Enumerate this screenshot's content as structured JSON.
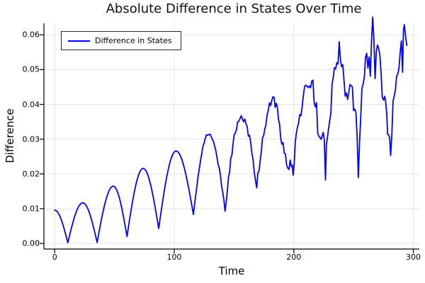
{
  "figure": {
    "title": "Absolute Difference in States Over Time"
  },
  "colors": {
    "line": "#0000ff",
    "grid": "#e3e3e3",
    "axis": "#000000",
    "text": "#000000",
    "legend_border": "#2b2b2b",
    "background": "#ffffff"
  },
  "chart_data": {
    "type": "line",
    "title": "Absolute Difference in States Over Time",
    "xlabel": "Time",
    "ylabel": "Difference",
    "xlim": [
      -9,
      305
    ],
    "ylim": [
      -0.0016,
      0.0633
    ],
    "grid": true,
    "legend": {
      "position": "top-left",
      "entries": [
        {
          "label": "Difference in States",
          "color": "#0000ff"
        }
      ]
    },
    "x_ticks": {
      "values": [
        0,
        100,
        200,
        300
      ],
      "labels": [
        "0",
        "100",
        "200",
        "300"
      ]
    },
    "y_ticks": {
      "values": [
        0,
        0.01,
        0.02,
        0.03,
        0.04,
        0.05,
        0.06
      ],
      "labels": [
        "0.00",
        "0.01",
        "0.02",
        "0.03",
        "0.04",
        "0.05",
        "0.06"
      ]
    },
    "series": [
      {
        "name": "Difference in States",
        "color": "#0000ff",
        "keypoints": [
          [
            0,
            0.0096
          ],
          [
            11,
            0.0002
          ],
          [
            23.5,
            0.0117
          ],
          [
            35.5,
            0.0003
          ],
          [
            49,
            0.0165
          ],
          [
            60.5,
            0.002
          ],
          [
            74,
            0.0216
          ],
          [
            87,
            0.0043
          ],
          [
            101.5,
            0.0266
          ],
          [
            116,
            0.0084
          ],
          [
            129,
            0.0317
          ],
          [
            142.5,
            0.0096
          ],
          [
            156,
            0.0364
          ],
          [
            169,
            0.017
          ],
          [
            183.5,
            0.0411
          ],
          [
            190,
            0.029
          ],
          [
            193,
            0.024
          ],
          [
            196,
            0.0205
          ],
          [
            198,
            0.024
          ],
          [
            199.5,
            0.0195
          ],
          [
            203,
            0.031
          ],
          [
            207,
            0.039
          ],
          [
            211,
            0.0465
          ],
          [
            214,
            0.0455
          ],
          [
            217,
            0.043
          ],
          [
            220,
            0.034
          ],
          [
            225.5,
            0.028
          ],
          [
            226.5,
            0.018
          ],
          [
            228,
            0.0285
          ],
          [
            231,
            0.04
          ],
          [
            233,
            0.05
          ],
          [
            235,
            0.0475
          ],
          [
            238,
            0.056
          ],
          [
            241,
            0.049
          ],
          [
            244,
            0.0415
          ],
          [
            248,
            0.043
          ],
          [
            252,
            0.038
          ],
          [
            254,
            0.021
          ],
          [
            256,
            0.036
          ],
          [
            258,
            0.044
          ],
          [
            262,
            0.0535
          ],
          [
            264,
            0.049
          ],
          [
            266,
            0.062
          ],
          [
            268,
            0.05
          ],
          [
            270,
            0.0575
          ],
          [
            273,
            0.046
          ],
          [
            276,
            0.04
          ],
          [
            278.5,
            0.033
          ],
          [
            281,
            0.026
          ],
          [
            284,
            0.04
          ],
          [
            286,
            0.045
          ],
          [
            288,
            0.05
          ],
          [
            290,
            0.058
          ],
          [
            291,
            0.0525
          ],
          [
            292.5,
            0.062
          ],
          [
            294.5,
            0.057
          ]
        ],
        "noise": {
          "start_t": 112,
          "slope": 2.8e-05,
          "max_amp": 0.0033,
          "seed": 77
        }
      }
    ]
  }
}
